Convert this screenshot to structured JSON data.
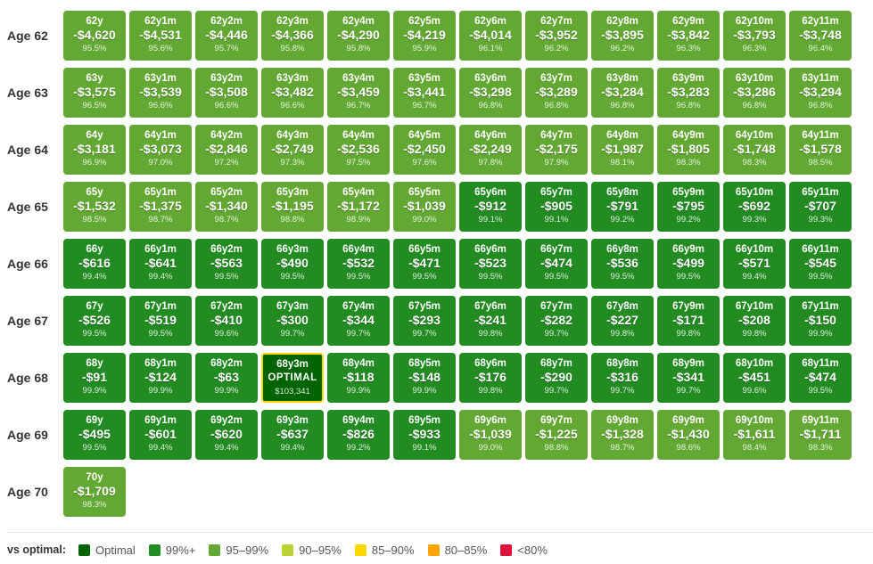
{
  "colors": {
    "optimal": "#006400",
    "99": "#228b22",
    "95": "#62a832",
    "90": "#bcd232",
    "85": "#ffd700",
    "80": "#ffa500",
    "lt80": "#dc143c",
    "optimal_border": "#ffd700"
  },
  "rows": [
    {
      "label": "Age 62",
      "cells": [
        {
          "label": "62y",
          "delta": "-$4,620",
          "pct": "95.5%",
          "tier": "95"
        },
        {
          "label": "62y1m",
          "delta": "-$4,531",
          "pct": "95.6%",
          "tier": "95"
        },
        {
          "label": "62y2m",
          "delta": "-$4,446",
          "pct": "95.7%",
          "tier": "95"
        },
        {
          "label": "62y3m",
          "delta": "-$4,366",
          "pct": "95.8%",
          "tier": "95"
        },
        {
          "label": "62y4m",
          "delta": "-$4,290",
          "pct": "95.8%",
          "tier": "95"
        },
        {
          "label": "62y5m",
          "delta": "-$4,219",
          "pct": "95.9%",
          "tier": "95"
        },
        {
          "label": "62y6m",
          "delta": "-$4,014",
          "pct": "96.1%",
          "tier": "95"
        },
        {
          "label": "62y7m",
          "delta": "-$3,952",
          "pct": "96.2%",
          "tier": "95"
        },
        {
          "label": "62y8m",
          "delta": "-$3,895",
          "pct": "96.2%",
          "tier": "95"
        },
        {
          "label": "62y9m",
          "delta": "-$3,842",
          "pct": "96.3%",
          "tier": "95"
        },
        {
          "label": "62y10m",
          "delta": "-$3,793",
          "pct": "96.3%",
          "tier": "95"
        },
        {
          "label": "62y11m",
          "delta": "-$3,748",
          "pct": "96.4%",
          "tier": "95"
        }
      ]
    },
    {
      "label": "Age 63",
      "cells": [
        {
          "label": "63y",
          "delta": "-$3,575",
          "pct": "96.5%",
          "tier": "95"
        },
        {
          "label": "63y1m",
          "delta": "-$3,539",
          "pct": "96.6%",
          "tier": "95"
        },
        {
          "label": "63y2m",
          "delta": "-$3,508",
          "pct": "96.6%",
          "tier": "95"
        },
        {
          "label": "63y3m",
          "delta": "-$3,482",
          "pct": "96.6%",
          "tier": "95"
        },
        {
          "label": "63y4m",
          "delta": "-$3,459",
          "pct": "96.7%",
          "tier": "95"
        },
        {
          "label": "63y5m",
          "delta": "-$3,441",
          "pct": "96.7%",
          "tier": "95"
        },
        {
          "label": "63y6m",
          "delta": "-$3,298",
          "pct": "96.8%",
          "tier": "95"
        },
        {
          "label": "63y7m",
          "delta": "-$3,289",
          "pct": "96.8%",
          "tier": "95"
        },
        {
          "label": "63y8m",
          "delta": "-$3,284",
          "pct": "96.8%",
          "tier": "95"
        },
        {
          "label": "63y9m",
          "delta": "-$3,283",
          "pct": "96.8%",
          "tier": "95"
        },
        {
          "label": "63y10m",
          "delta": "-$3,286",
          "pct": "96.8%",
          "tier": "95"
        },
        {
          "label": "63y11m",
          "delta": "-$3,294",
          "pct": "96.8%",
          "tier": "95"
        }
      ]
    },
    {
      "label": "Age 64",
      "cells": [
        {
          "label": "64y",
          "delta": "-$3,181",
          "pct": "96.9%",
          "tier": "95"
        },
        {
          "label": "64y1m",
          "delta": "-$3,073",
          "pct": "97.0%",
          "tier": "95"
        },
        {
          "label": "64y2m",
          "delta": "-$2,846",
          "pct": "97.2%",
          "tier": "95"
        },
        {
          "label": "64y3m",
          "delta": "-$2,749",
          "pct": "97.3%",
          "tier": "95"
        },
        {
          "label": "64y4m",
          "delta": "-$2,536",
          "pct": "97.5%",
          "tier": "95"
        },
        {
          "label": "64y5m",
          "delta": "-$2,450",
          "pct": "97.6%",
          "tier": "95"
        },
        {
          "label": "64y6m",
          "delta": "-$2,249",
          "pct": "97.8%",
          "tier": "95"
        },
        {
          "label": "64y7m",
          "delta": "-$2,175",
          "pct": "97.9%",
          "tier": "95"
        },
        {
          "label": "64y8m",
          "delta": "-$1,987",
          "pct": "98.1%",
          "tier": "95"
        },
        {
          "label": "64y9m",
          "delta": "-$1,805",
          "pct": "98.3%",
          "tier": "95"
        },
        {
          "label": "64y10m",
          "delta": "-$1,748",
          "pct": "98.3%",
          "tier": "95"
        },
        {
          "label": "64y11m",
          "delta": "-$1,578",
          "pct": "98.5%",
          "tier": "95"
        }
      ]
    },
    {
      "label": "Age 65",
      "cells": [
        {
          "label": "65y",
          "delta": "-$1,532",
          "pct": "98.5%",
          "tier": "95"
        },
        {
          "label": "65y1m",
          "delta": "-$1,375",
          "pct": "98.7%",
          "tier": "95"
        },
        {
          "label": "65y2m",
          "delta": "-$1,340",
          "pct": "98.7%",
          "tier": "95"
        },
        {
          "label": "65y3m",
          "delta": "-$1,195",
          "pct": "98.8%",
          "tier": "95"
        },
        {
          "label": "65y4m",
          "delta": "-$1,172",
          "pct": "98.9%",
          "tier": "95"
        },
        {
          "label": "65y5m",
          "delta": "-$1,039",
          "pct": "99.0%",
          "tier": "95"
        },
        {
          "label": "65y6m",
          "delta": "-$912",
          "pct": "99.1%",
          "tier": "99"
        },
        {
          "label": "65y7m",
          "delta": "-$905",
          "pct": "99.1%",
          "tier": "99"
        },
        {
          "label": "65y8m",
          "delta": "-$791",
          "pct": "99.2%",
          "tier": "99"
        },
        {
          "label": "65y9m",
          "delta": "-$795",
          "pct": "99.2%",
          "tier": "99"
        },
        {
          "label": "65y10m",
          "delta": "-$692",
          "pct": "99.3%",
          "tier": "99"
        },
        {
          "label": "65y11m",
          "delta": "-$707",
          "pct": "99.3%",
          "tier": "99"
        }
      ]
    },
    {
      "label": "Age 66",
      "cells": [
        {
          "label": "66y",
          "delta": "-$616",
          "pct": "99.4%",
          "tier": "99"
        },
        {
          "label": "66y1m",
          "delta": "-$641",
          "pct": "99.4%",
          "tier": "99"
        },
        {
          "label": "66y2m",
          "delta": "-$563",
          "pct": "99.5%",
          "tier": "99"
        },
        {
          "label": "66y3m",
          "delta": "-$490",
          "pct": "99.5%",
          "tier": "99"
        },
        {
          "label": "66y4m",
          "delta": "-$532",
          "pct": "99.5%",
          "tier": "99"
        },
        {
          "label": "66y5m",
          "delta": "-$471",
          "pct": "99.5%",
          "tier": "99"
        },
        {
          "label": "66y6m",
          "delta": "-$523",
          "pct": "99.5%",
          "tier": "99"
        },
        {
          "label": "66y7m",
          "delta": "-$474",
          "pct": "99.5%",
          "tier": "99"
        },
        {
          "label": "66y8m",
          "delta": "-$536",
          "pct": "99.5%",
          "tier": "99"
        },
        {
          "label": "66y9m",
          "delta": "-$499",
          "pct": "99.5%",
          "tier": "99"
        },
        {
          "label": "66y10m",
          "delta": "-$571",
          "pct": "99.4%",
          "tier": "99"
        },
        {
          "label": "66y11m",
          "delta": "-$545",
          "pct": "99.5%",
          "tier": "99"
        }
      ]
    },
    {
      "label": "Age 67",
      "cells": [
        {
          "label": "67y",
          "delta": "-$526",
          "pct": "99.5%",
          "tier": "99"
        },
        {
          "label": "67y1m",
          "delta": "-$519",
          "pct": "99.5%",
          "tier": "99"
        },
        {
          "label": "67y2m",
          "delta": "-$410",
          "pct": "99.6%",
          "tier": "99"
        },
        {
          "label": "67y3m",
          "delta": "-$300",
          "pct": "99.7%",
          "tier": "99"
        },
        {
          "label": "67y4m",
          "delta": "-$344",
          "pct": "99.7%",
          "tier": "99"
        },
        {
          "label": "67y5m",
          "delta": "-$293",
          "pct": "99.7%",
          "tier": "99"
        },
        {
          "label": "67y6m",
          "delta": "-$241",
          "pct": "99.8%",
          "tier": "99"
        },
        {
          "label": "67y7m",
          "delta": "-$282",
          "pct": "99.7%",
          "tier": "99"
        },
        {
          "label": "67y8m",
          "delta": "-$227",
          "pct": "99.8%",
          "tier": "99"
        },
        {
          "label": "67y9m",
          "delta": "-$171",
          "pct": "99.8%",
          "tier": "99"
        },
        {
          "label": "67y10m",
          "delta": "-$208",
          "pct": "99.8%",
          "tier": "99"
        },
        {
          "label": "67y11m",
          "delta": "-$150",
          "pct": "99.9%",
          "tier": "99"
        }
      ]
    },
    {
      "label": "Age 68",
      "cells": [
        {
          "label": "68y",
          "delta": "-$91",
          "pct": "99.9%",
          "tier": "99"
        },
        {
          "label": "68y1m",
          "delta": "-$124",
          "pct": "99.9%",
          "tier": "99"
        },
        {
          "label": "68y2m",
          "delta": "-$63",
          "pct": "99.9%",
          "tier": "99"
        },
        {
          "label": "68y3m",
          "delta": "OPTIMAL",
          "pct": "$103,341",
          "tier": "optimal"
        },
        {
          "label": "68y4m",
          "delta": "-$118",
          "pct": "99.9%",
          "tier": "99"
        },
        {
          "label": "68y5m",
          "delta": "-$148",
          "pct": "99.9%",
          "tier": "99"
        },
        {
          "label": "68y6m",
          "delta": "-$176",
          "pct": "99.8%",
          "tier": "99"
        },
        {
          "label": "68y7m",
          "delta": "-$290",
          "pct": "99.7%",
          "tier": "99"
        },
        {
          "label": "68y8m",
          "delta": "-$316",
          "pct": "99.7%",
          "tier": "99"
        },
        {
          "label": "68y9m",
          "delta": "-$341",
          "pct": "99.7%",
          "tier": "99"
        },
        {
          "label": "68y10m",
          "delta": "-$451",
          "pct": "99.6%",
          "tier": "99"
        },
        {
          "label": "68y11m",
          "delta": "-$474",
          "pct": "99.5%",
          "tier": "99"
        }
      ]
    },
    {
      "label": "Age 69",
      "cells": [
        {
          "label": "69y",
          "delta": "-$495",
          "pct": "99.5%",
          "tier": "99"
        },
        {
          "label": "69y1m",
          "delta": "-$601",
          "pct": "99.4%",
          "tier": "99"
        },
        {
          "label": "69y2m",
          "delta": "-$620",
          "pct": "99.4%",
          "tier": "99"
        },
        {
          "label": "69y3m",
          "delta": "-$637",
          "pct": "99.4%",
          "tier": "99"
        },
        {
          "label": "69y4m",
          "delta": "-$826",
          "pct": "99.2%",
          "tier": "99"
        },
        {
          "label": "69y5m",
          "delta": "-$933",
          "pct": "99.1%",
          "tier": "99"
        },
        {
          "label": "69y6m",
          "delta": "-$1,039",
          "pct": "99.0%",
          "tier": "95"
        },
        {
          "label": "69y7m",
          "delta": "-$1,225",
          "pct": "98.8%",
          "tier": "95"
        },
        {
          "label": "69y8m",
          "delta": "-$1,328",
          "pct": "98.7%",
          "tier": "95"
        },
        {
          "label": "69y9m",
          "delta": "-$1,430",
          "pct": "98.6%",
          "tier": "95"
        },
        {
          "label": "69y10m",
          "delta": "-$1,611",
          "pct": "98.4%",
          "tier": "95"
        },
        {
          "label": "69y11m",
          "delta": "-$1,711",
          "pct": "98.3%",
          "tier": "95"
        }
      ]
    },
    {
      "label": "Age 70",
      "cells": [
        {
          "label": "70y",
          "delta": "-$1,709",
          "pct": "98.3%",
          "tier": "95"
        }
      ]
    }
  ],
  "legend": {
    "title": "vs optimal:",
    "items": [
      {
        "label": "Optimal",
        "tier": "optimal"
      },
      {
        "label": "99%+",
        "tier": "99"
      },
      {
        "label": "95–99%",
        "tier": "95"
      },
      {
        "label": "90–95%",
        "tier": "90"
      },
      {
        "label": "85–90%",
        "tier": "85"
      },
      {
        "label": "80–85%",
        "tier": "80"
      },
      {
        "label": "<80%",
        "tier": "lt80"
      }
    ]
  }
}
